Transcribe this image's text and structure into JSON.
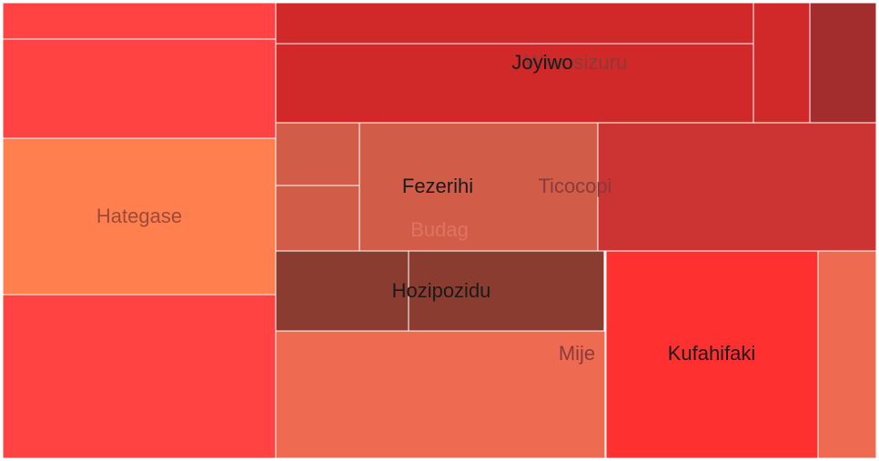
{
  "chart_data": {
    "type": "treemap",
    "title": "",
    "tiles": [
      {
        "id": "t-left-top",
        "label": "",
        "color": "#ff4242"
      },
      {
        "id": "t-left-upper",
        "label": "",
        "color": "#ff4242"
      },
      {
        "id": "t-hategase",
        "label": "Hategase",
        "color": "#ff7f4f"
      },
      {
        "id": "t-left-bottom",
        "label": "",
        "color": "#ff4242"
      },
      {
        "id": "t-top-strip",
        "label": "",
        "color": "#d12929"
      },
      {
        "id": "t-joyiwo",
        "label": "Joyiwo",
        "color": "#d12929"
      },
      {
        "id": "t-wiwosizuru",
        "label": "Wiwosizuru",
        "color": "#d12929"
      },
      {
        "id": "t-wiwosizuru-dark",
        "label": "",
        "color": "#a32c2c"
      },
      {
        "id": "t-budag-a",
        "label": "",
        "color": "#d15d48"
      },
      {
        "id": "t-budag-b",
        "label": "",
        "color": "#d15d48"
      },
      {
        "id": "t-fezerihi",
        "label": "Fezerihi",
        "color": "#d15d48"
      },
      {
        "id": "t-ticocopi",
        "label": "Ticocopi",
        "color": "#cc3333"
      },
      {
        "id": "t-hozipozidu-a",
        "label": "",
        "color": "#8b3c30"
      },
      {
        "id": "t-hozipozidu",
        "label": "Hozipozidu",
        "color": "#8b3c30"
      },
      {
        "id": "t-mije",
        "label": "",
        "color": "#ee6b52"
      },
      {
        "id": "t-kufahifaki",
        "label": "Kufahifaki",
        "color": "#ff3030"
      },
      {
        "id": "t-kufahifaki-side",
        "label": "",
        "color": "#ee6b52"
      }
    ],
    "group_labels": [
      {
        "id": "g-wiwosizuru",
        "label": "Wiwosizuru",
        "color": "#8b3a3a"
      },
      {
        "id": "g-joyiwo",
        "label": "Joyiwo",
        "color": "#1a1a1a"
      },
      {
        "id": "g-fezerihi",
        "label": "Fezerihi",
        "color": "#1a1a1a"
      },
      {
        "id": "g-ticocopi",
        "label": "Ticocopi",
        "color": "#8b3a3a"
      },
      {
        "id": "g-budag",
        "label": "Budag",
        "color": "#e0735f"
      },
      {
        "id": "g-hategase",
        "label": "Hategase",
        "color": "#9b4a3a"
      },
      {
        "id": "g-hozipozidu",
        "label": "Hozipozidu",
        "color": "#1a1a1a"
      },
      {
        "id": "g-mije",
        "label": "Mije",
        "color": "#8b3a3a"
      },
      {
        "id": "g-kufahifaki",
        "label": "Kufahifaki",
        "color": "#1a1a1a"
      }
    ]
  }
}
